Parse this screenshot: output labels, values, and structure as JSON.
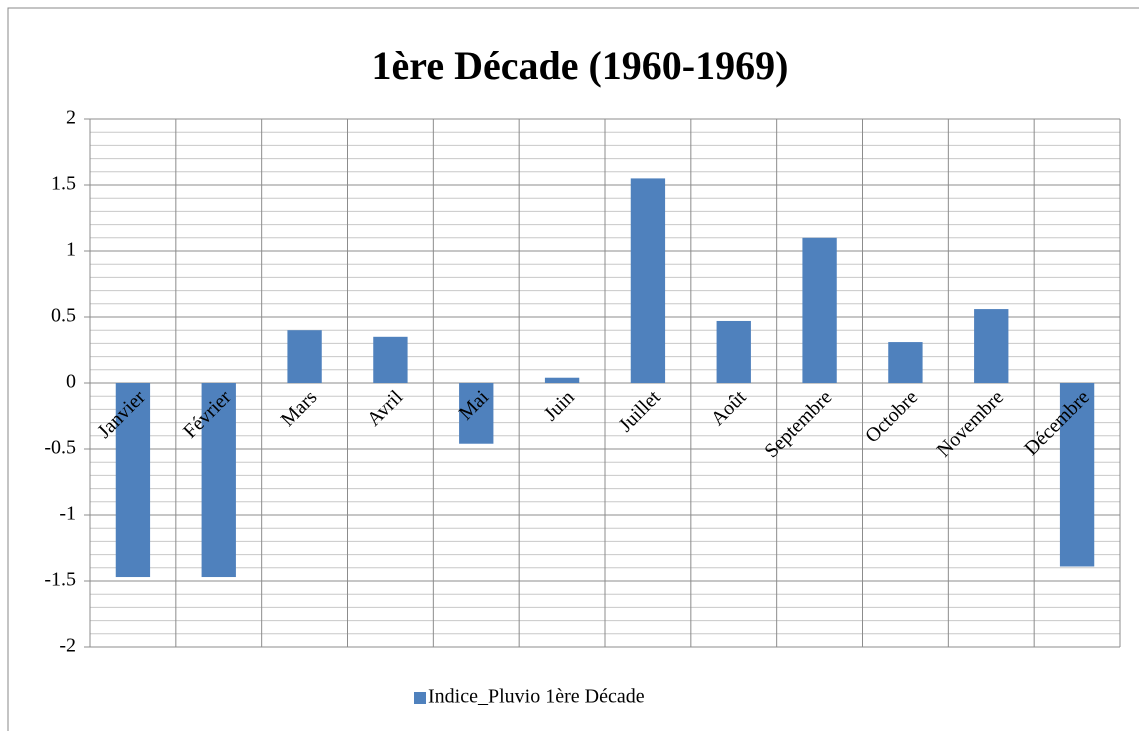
{
  "chart_data": {
    "type": "bar",
    "title": "1ère Décade (1960-1969)",
    "categories": [
      "Janvier",
      "Février",
      "Mars",
      "Avril",
      "Mai",
      "Juin",
      "Juillet",
      "Août",
      "Septembre",
      "Octobre",
      "Novembre",
      "Décembre"
    ],
    "series": [
      {
        "name": "Indice_Pluvio 1ère Décade",
        "color": "#4f81bd",
        "values": [
          -1.47,
          -1.47,
          0.4,
          0.35,
          -0.46,
          0.04,
          1.55,
          0.47,
          1.1,
          0.31,
          0.56,
          -1.39
        ]
      }
    ],
    "ylim": [
      -2,
      2
    ],
    "yticks": [
      -2,
      -1.5,
      -1,
      -0.5,
      0,
      0.5,
      1,
      1.5,
      2
    ],
    "grid": true,
    "minor_grid": true,
    "legend": "bottom"
  }
}
